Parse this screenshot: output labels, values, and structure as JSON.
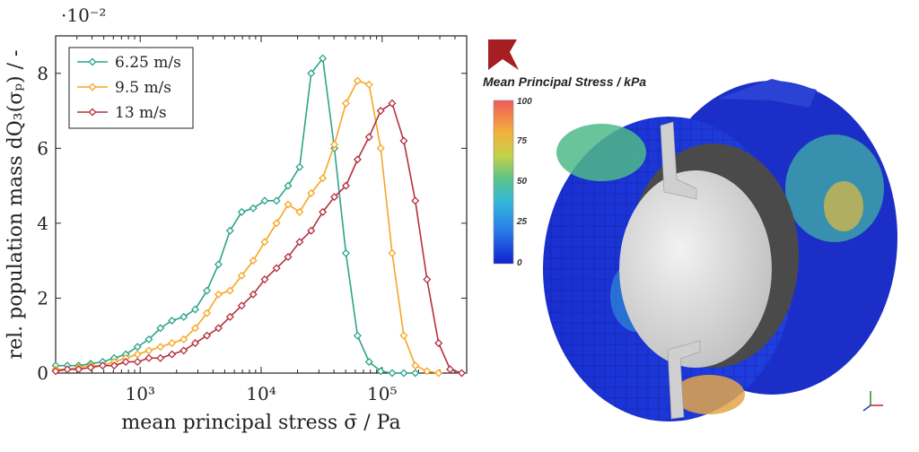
{
  "chart_data": {
    "type": "line",
    "title": "",
    "xlabel": "mean principal stress σ̄ / Pa",
    "ylabel": "rel. population mass dQ₃(σₚ) / -",
    "x_scale": "log",
    "xlim": [
      200,
      500000
    ],
    "ylim": [
      0,
      0.09
    ],
    "y_exponent_label": "·10⁻²",
    "x_ticks": [
      1000,
      10000,
      100000
    ],
    "x_tick_labels": [
      "10³",
      "10⁴",
      "10⁵"
    ],
    "y_ticks": [
      0,
      0.02,
      0.04,
      0.06,
      0.08
    ],
    "y_tick_labels": [
      "0",
      "2",
      "4",
      "6",
      "8"
    ],
    "grid": false,
    "legend": "top-left",
    "series": [
      {
        "name": "6.25 m/s",
        "color": "#2aa58a",
        "x": [
          200,
          250,
          310,
          390,
          490,
          610,
          760,
          950,
          1180,
          1470,
          1830,
          2290,
          2850,
          3560,
          4440,
          5530,
          6900,
          8600,
          10700,
          13400,
          16700,
          20800,
          25900,
          32300,
          40300,
          50200,
          62600,
          78000,
          97300,
          121000,
          151000,
          188000
        ],
        "y": [
          0.002,
          0.002,
          0.002,
          0.0025,
          0.003,
          0.004,
          0.005,
          0.007,
          0.009,
          0.012,
          0.014,
          0.015,
          0.017,
          0.022,
          0.029,
          0.038,
          0.043,
          0.044,
          0.046,
          0.046,
          0.05,
          0.055,
          0.08,
          0.084,
          0.06,
          0.032,
          0.01,
          0.003,
          0.0005,
          0,
          0,
          0
        ]
      },
      {
        "name": "9.5 m/s",
        "color": "#f5a623",
        "x": [
          200,
          250,
          310,
          390,
          490,
          610,
          760,
          950,
          1180,
          1470,
          1830,
          2290,
          2850,
          3560,
          4440,
          5530,
          6900,
          8600,
          10700,
          13400,
          16700,
          20800,
          25900,
          32300,
          40300,
          50200,
          62600,
          78000,
          97300,
          121000,
          151000,
          188000,
          235000,
          293000
        ],
        "y": [
          0.001,
          0.001,
          0.0015,
          0.002,
          0.002,
          0.003,
          0.004,
          0.005,
          0.006,
          0.007,
          0.008,
          0.009,
          0.012,
          0.016,
          0.021,
          0.022,
          0.026,
          0.03,
          0.035,
          0.04,
          0.045,
          0.043,
          0.048,
          0.052,
          0.061,
          0.072,
          0.078,
          0.077,
          0.06,
          0.032,
          0.01,
          0.002,
          0.0005,
          0
        ]
      },
      {
        "name": "13 m/s",
        "color": "#b5303e",
        "x": [
          200,
          250,
          310,
          390,
          490,
          610,
          760,
          950,
          1180,
          1470,
          1830,
          2290,
          2850,
          3560,
          4440,
          5530,
          6900,
          8600,
          10700,
          13400,
          16700,
          20800,
          25900,
          32300,
          40300,
          50200,
          62600,
          78000,
          97300,
          121000,
          151000,
          188000,
          235000,
          293000,
          365000,
          455000
        ],
        "y": [
          0.0005,
          0.001,
          0.001,
          0.0015,
          0.002,
          0.002,
          0.003,
          0.003,
          0.004,
          0.004,
          0.005,
          0.006,
          0.008,
          0.01,
          0.012,
          0.015,
          0.018,
          0.021,
          0.025,
          0.028,
          0.031,
          0.035,
          0.038,
          0.043,
          0.047,
          0.05,
          0.057,
          0.063,
          0.07,
          0.072,
          0.062,
          0.046,
          0.025,
          0.008,
          0.001,
          0
        ]
      }
    ]
  },
  "colorbar": {
    "title": "Mean Principal Stress / kPa",
    "tick_labels": [
      "100",
      "75",
      "50",
      "25",
      "0"
    ],
    "logo_color": "#a61e22"
  }
}
